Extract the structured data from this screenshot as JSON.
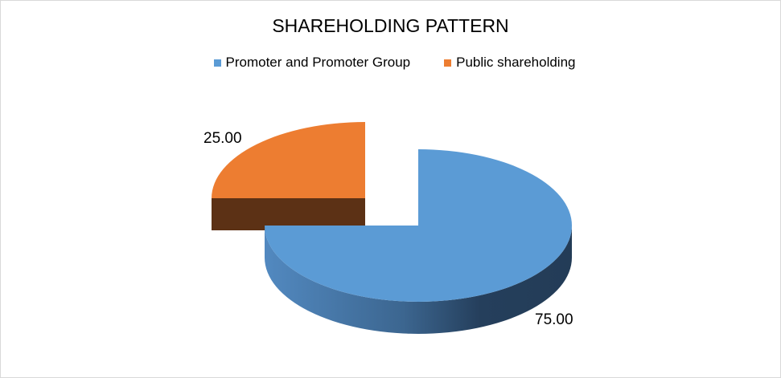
{
  "chart_data": {
    "type": "pie",
    "title": "SHAREHOLDING PATTERN",
    "legend_position": "top",
    "style": "3d-exploded",
    "series": [
      {
        "name": "Promoter and Promoter Group",
        "value": 75.0,
        "label": "75.00",
        "color": "#5b9bd5"
      },
      {
        "name": "Public shareholding",
        "value": 25.0,
        "label": "25.00",
        "color": "#ed7d31"
      }
    ]
  }
}
